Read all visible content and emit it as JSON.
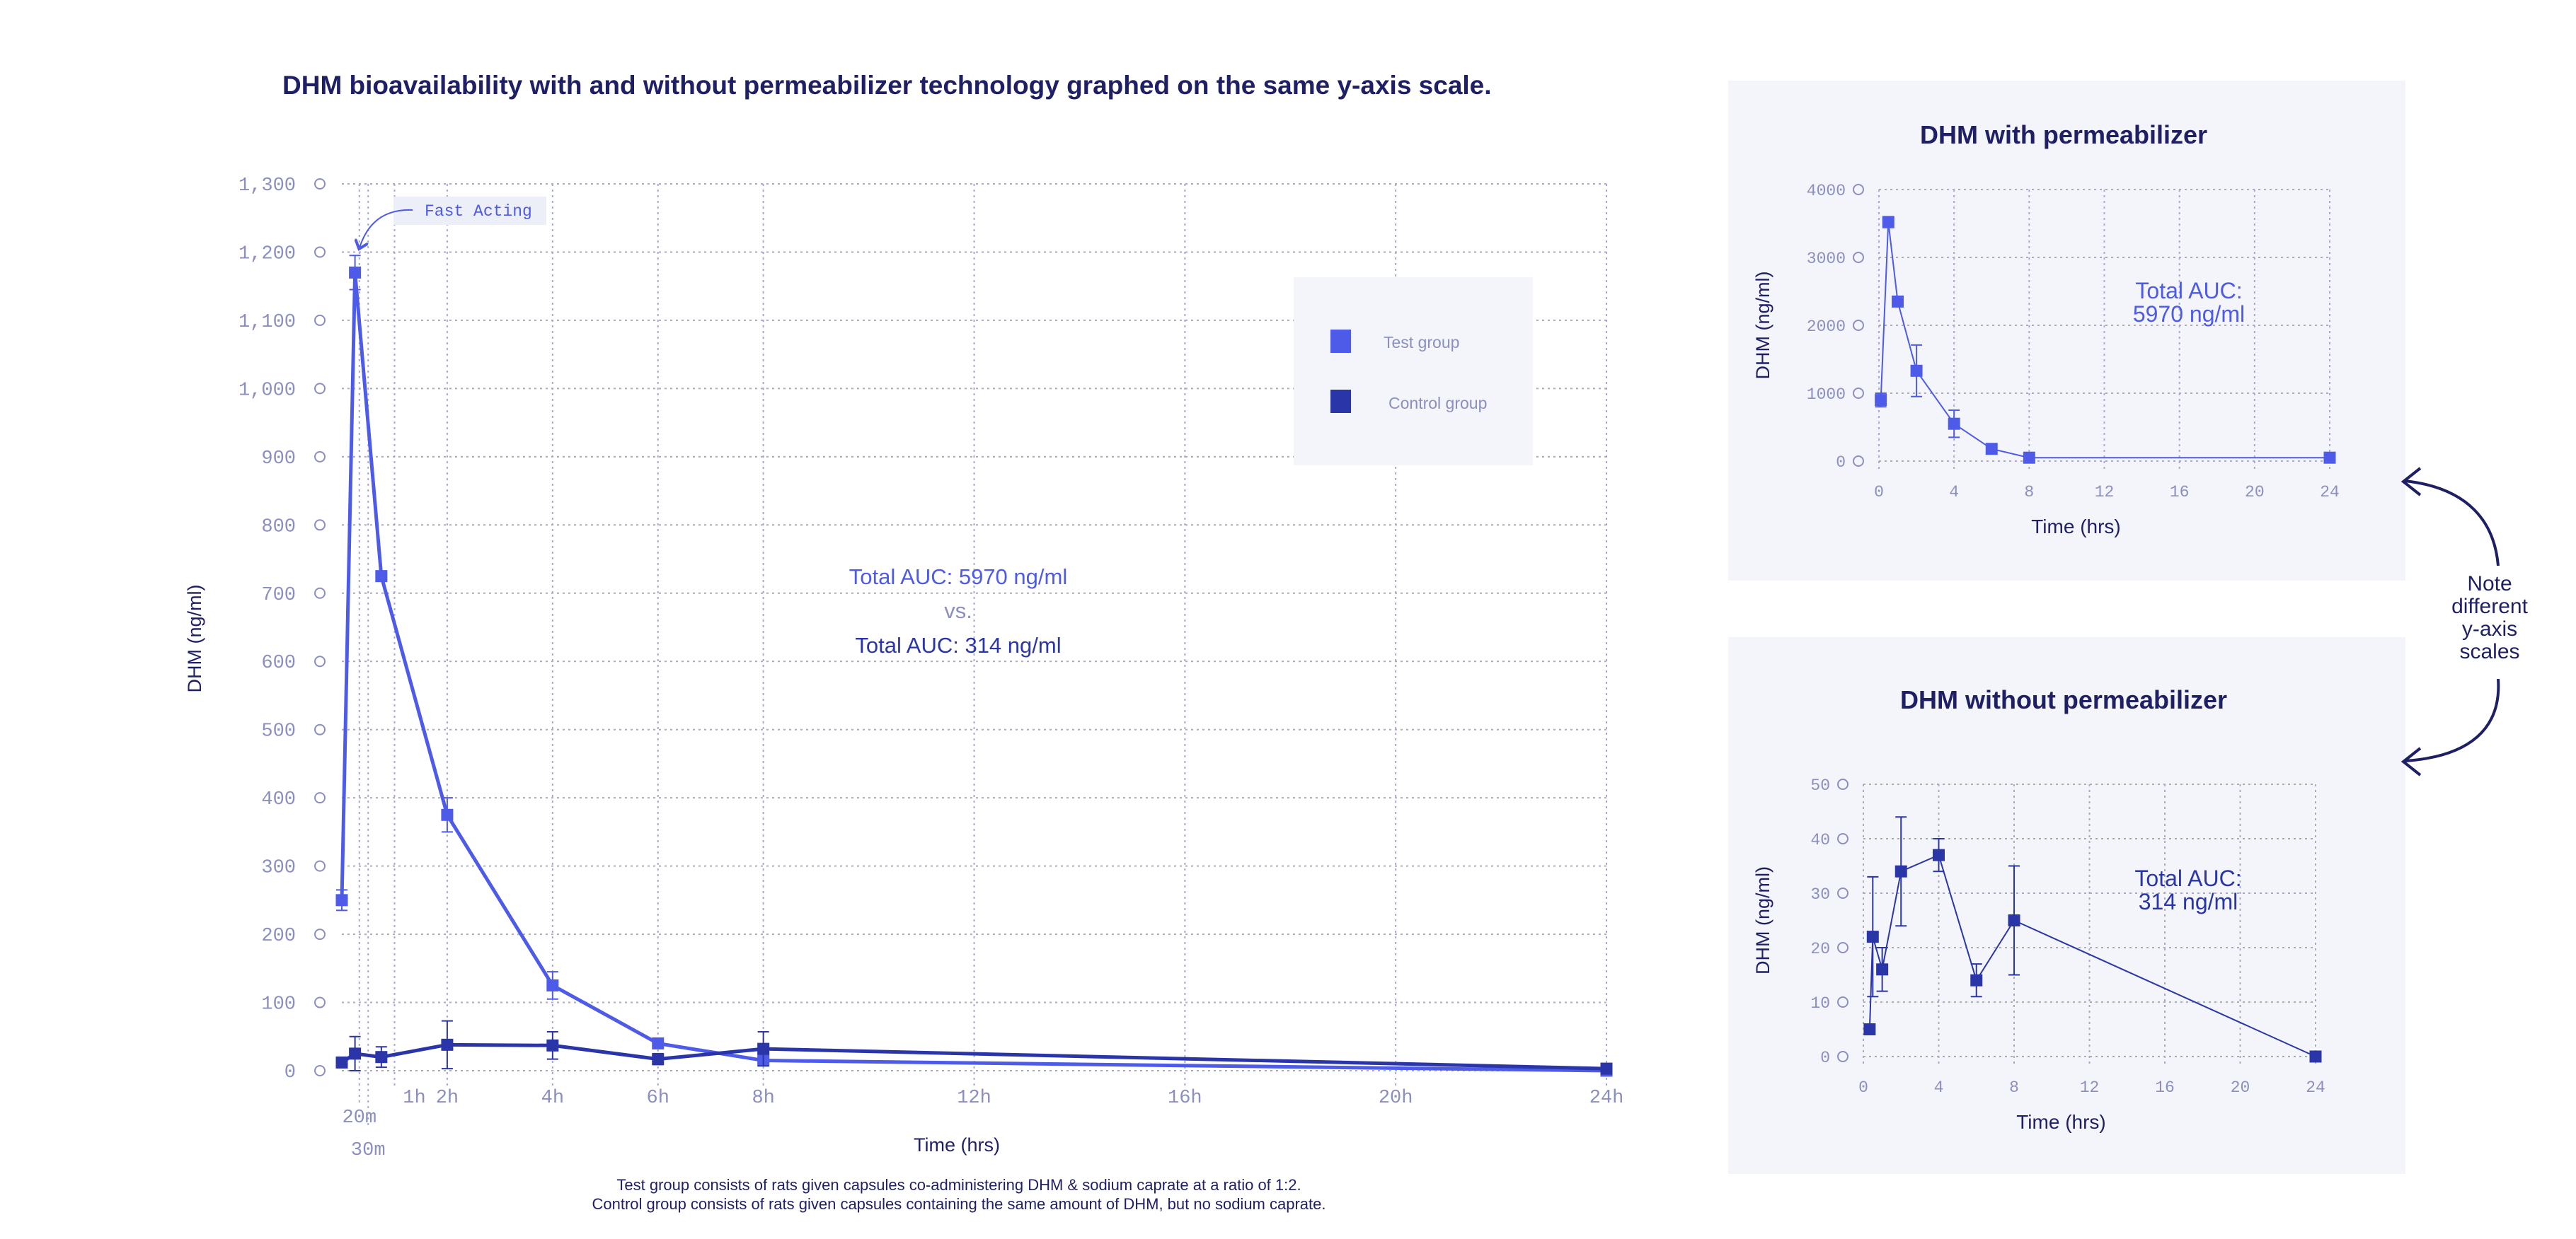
{
  "main_title": "DHM bioavailability with and without permeabilizer technology graphed on the same y-axis scale.",
  "note": [
    "Note",
    "different",
    "y-axis",
    "scales"
  ],
  "footnote": [
    "Test group consists of rats given capsules co-administering DHM & sodium caprate at a ratio of 1:2.",
    "Control group consists of rats given capsules containing the same amount of DHM, but no sodium caprate."
  ],
  "colors": {
    "test": "#4d5be8",
    "control": "#2a36a8",
    "axis_text": "#8b8fc0",
    "grid": "#a7abc9",
    "dark": "#1f1f66"
  },
  "chart_data": [
    {
      "type": "line",
      "title": "",
      "xlabel": "Time (hrs)",
      "ylabel": "DHM (ng/ml)",
      "xlim": [
        0,
        24
      ],
      "ylim": [
        0,
        1300
      ],
      "x_ticks": [
        {
          "v": 0.333,
          "label": "20m",
          "row": 2
        },
        {
          "v": 0.5,
          "label": "30m",
          "row": 3
        },
        {
          "v": 1,
          "label": "1h",
          "row": 1
        },
        {
          "v": 2,
          "label": "2h",
          "row": 1
        },
        {
          "v": 4,
          "label": "4h",
          "row": 1
        },
        {
          "v": 6,
          "label": "6h",
          "row": 1
        },
        {
          "v": 8,
          "label": "8h",
          "row": 1
        },
        {
          "v": 12,
          "label": "12h",
          "row": 1
        },
        {
          "v": 16,
          "label": "16h",
          "row": 1
        },
        {
          "v": 20,
          "label": "20h",
          "row": 1
        },
        {
          "v": 24,
          "label": "24h",
          "row": 1
        }
      ],
      "y_ticks": [
        {
          "v": 0,
          "label": "0"
        },
        {
          "v": 100,
          "label": "100"
        },
        {
          "v": 200,
          "label": "200"
        },
        {
          "v": 300,
          "label": "300"
        },
        {
          "v": 400,
          "label": "400"
        },
        {
          "v": 500,
          "label": "500"
        },
        {
          "v": 600,
          "label": "600"
        },
        {
          "v": 700,
          "label": "700"
        },
        {
          "v": 800,
          "label": "800"
        },
        {
          "v": 900,
          "label": "900"
        },
        {
          "v": 1000,
          "label": "1,000"
        },
        {
          "v": 1100,
          "label": "1,100"
        },
        {
          "v": 1200,
          "label": "1,200"
        },
        {
          "v": 1300,
          "label": "1,300"
        }
      ],
      "grid": true,
      "legend": {
        "placement": "top-right",
        "entries": [
          "Test group",
          "Control group"
        ]
      },
      "annotations": {
        "fast_acting": "Fast Acting",
        "auc_test": "Total AUC: 5970 ng/ml",
        "vs": "vs.",
        "auc_control": "Total AUC: 314 ng/ml"
      },
      "series": [
        {
          "name": "Test group",
          "color": "test",
          "x": [
            0,
            0.25,
            0.75,
            2,
            4,
            6,
            8,
            24
          ],
          "y": [
            250,
            1170,
            725,
            375,
            125,
            40,
            15,
            0
          ],
          "err": [
            15,
            25,
            0,
            25,
            20,
            0,
            0,
            0
          ]
        },
        {
          "name": "Control group",
          "color": "control",
          "x": [
            0,
            0.25,
            0.75,
            2,
            4,
            6,
            8,
            24
          ],
          "y": [
            12,
            25,
            20,
            38,
            37,
            17,
            32,
            3
          ],
          "err": [
            0,
            25,
            15,
            35,
            20,
            8,
            25,
            0
          ]
        }
      ]
    },
    {
      "type": "line",
      "title": "DHM with permeabilizer",
      "xlabel": "Time (hrs)",
      "ylabel": "DHM (ng/ml)",
      "xlim": [
        0,
        24
      ],
      "ylim": [
        0,
        4000
      ],
      "x_ticks": [
        0,
        4,
        8,
        12,
        16,
        20,
        24
      ],
      "y_ticks": [
        0,
        1000,
        2000,
        3000,
        4000
      ],
      "grid": true,
      "annotation": [
        "Total AUC:",
        "5970 ng/ml"
      ],
      "series": [
        {
          "name": "",
          "color": "test",
          "x": [
            0.1,
            0.5,
            1,
            2,
            4,
            6,
            8,
            24
          ],
          "y": [
            900,
            3520,
            2350,
            1330,
            550,
            180,
            50,
            50
          ],
          "err": [
            100,
            80,
            0,
            380,
            200,
            0,
            0,
            0
          ]
        }
      ]
    },
    {
      "type": "line",
      "title": "DHM without permeabilizer",
      "xlabel": "Time (hrs)",
      "ylabel": "DHM (ng/ml)",
      "xlim": [
        0,
        24
      ],
      "ylim": [
        0,
        50
      ],
      "x_ticks": [
        0,
        4,
        8,
        12,
        16,
        20,
        24
      ],
      "y_ticks": [
        0,
        10,
        20,
        30,
        40,
        50
      ],
      "grid": true,
      "annotation": [
        "Total AUC:",
        "314 ng/ml"
      ],
      "series": [
        {
          "name": "",
          "color": "control",
          "x": [
            0.333,
            0.5,
            1,
            2,
            4,
            6,
            8,
            24
          ],
          "y": [
            5,
            22,
            16,
            34,
            37,
            14,
            25,
            0
          ],
          "err": [
            0,
            11,
            4,
            10,
            3,
            3,
            10,
            0
          ]
        }
      ]
    }
  ]
}
